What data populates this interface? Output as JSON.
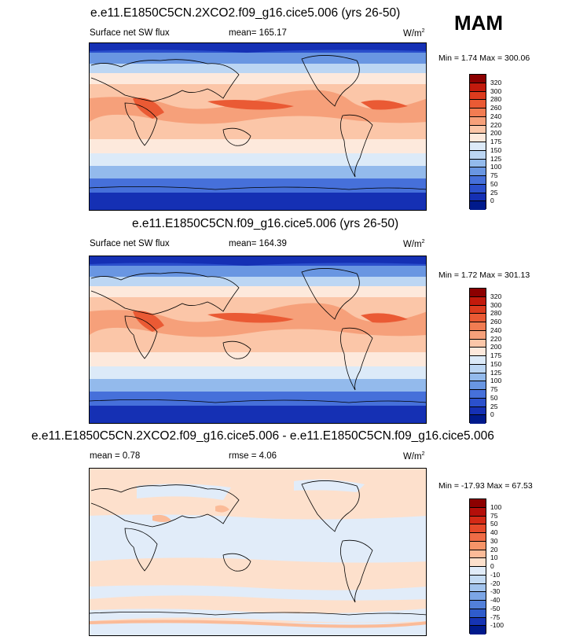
{
  "season": "MAM",
  "panels": [
    {
      "title": "e.e11.E1850C5CN.2XCO2.f09_g16.cice5.006 (yrs 26-50)",
      "variable": "Surface net SW flux",
      "mean_text": "mean= 165.17",
      "rmse_text": "",
      "units": "W/m",
      "units_exp": "2",
      "minmax": "Min =   1.74 Max = 300.06",
      "colorbar_labels": [
        "320",
        "300",
        "280",
        "260",
        "240",
        "220",
        "200",
        "175",
        "150",
        "125",
        "100",
        "75",
        "50",
        "25",
        "0"
      ],
      "colorbar_colors": [
        "#8c0000",
        "#c21a0c",
        "#dc3b1e",
        "#ea5a34",
        "#f27c52",
        "#f6a07a",
        "#fbc6a8",
        "#fde9dc",
        "#dceaf8",
        "#bcd6f3",
        "#93baec",
        "#6996e2",
        "#4670da",
        "#2b50cc",
        "#1530b4",
        "#001a8c"
      ]
    },
    {
      "title": "e.e11.E1850C5CN.f09_g16.cice5.006 (yrs 26-50)",
      "variable": "Surface net SW flux",
      "mean_text": "mean= 164.39",
      "rmse_text": "",
      "units": "W/m",
      "units_exp": "2",
      "minmax": "Min =   1.72 Max = 301.13",
      "colorbar_labels": [
        "320",
        "300",
        "280",
        "260",
        "240",
        "220",
        "200",
        "175",
        "150",
        "125",
        "100",
        "75",
        "50",
        "25",
        "0"
      ],
      "colorbar_colors": [
        "#8c0000",
        "#c21a0c",
        "#dc3b1e",
        "#ea5a34",
        "#f27c52",
        "#f6a07a",
        "#fbc6a8",
        "#fde9dc",
        "#dceaf8",
        "#bcd6f3",
        "#93baec",
        "#6996e2",
        "#4670da",
        "#2b50cc",
        "#1530b4",
        "#001a8c"
      ]
    },
    {
      "title": "e.e11.E1850C5CN.2XCO2.f09_g16.cice5.006 - e.e11.E1850C5CN.f09_g16.cice5.006",
      "variable": "",
      "mean_text": "mean =   0.78",
      "rmse_text": "rmse =   4.06",
      "units": "W/m",
      "units_exp": "2",
      "minmax": "Min = -17.93 Max =  67.53",
      "colorbar_labels": [
        "100",
        "75",
        "50",
        "40",
        "30",
        "20",
        "10",
        "0",
        "-10",
        "-20",
        "-30",
        "-40",
        "-50",
        "-75",
        "-100"
      ],
      "colorbar_colors": [
        "#8c0000",
        "#b40f0a",
        "#d42a16",
        "#e64a2a",
        "#f06c46",
        "#f69468",
        "#fbbb98",
        "#fde0cc",
        "#e1ecf9",
        "#c4dbf4",
        "#a2c4ee",
        "#7ca6e6",
        "#5280da",
        "#2f5ccc",
        "#1634b4",
        "#001a8c"
      ]
    }
  ]
}
